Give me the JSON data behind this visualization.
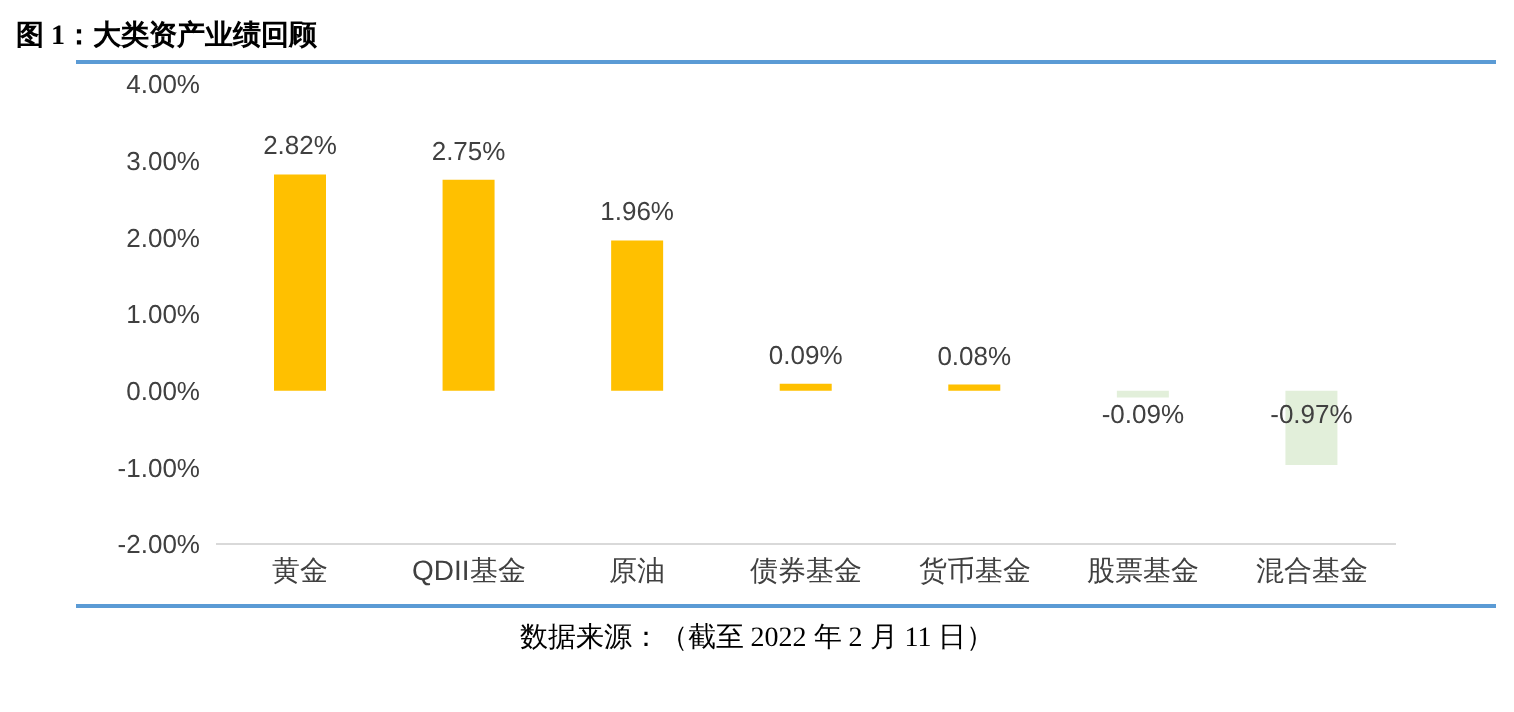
{
  "chart_data": {
    "type": "bar",
    "title": "图 1：大类资产业绩回顾",
    "categories": [
      "黄金",
      "QDII基金",
      "原油",
      "债券基金",
      "货币基金",
      "股票基金",
      "混合基金"
    ],
    "values": [
      2.82,
      2.75,
      1.96,
      0.09,
      0.08,
      -0.09,
      -0.97
    ],
    "colors": [
      "#ffc000",
      "#ffc000",
      "#ffc000",
      "#ffc000",
      "#ffc000",
      "#e2efda",
      "#e2efda"
    ],
    "value_labels": [
      "2.82%",
      "2.75%",
      "1.96%",
      "0.09%",
      "0.08%",
      "-0.09%",
      "-0.97%"
    ],
    "ylim": [
      -2,
      4
    ],
    "yticks": [
      {
        "value": -2,
        "label": "-2.00%"
      },
      {
        "value": -1,
        "label": "-1.00%"
      },
      {
        "value": 0,
        "label": "0.00%"
      },
      {
        "value": 1,
        "label": "1.00%"
      },
      {
        "value": 2,
        "label": "2.00%"
      },
      {
        "value": 3,
        "label": "3.00%"
      },
      {
        "value": 4,
        "label": "4.00%"
      }
    ],
    "grid": false,
    "legend": false,
    "annotations": [
      "数据来源：（截至 2022 年 2 月 11 日）"
    ]
  }
}
